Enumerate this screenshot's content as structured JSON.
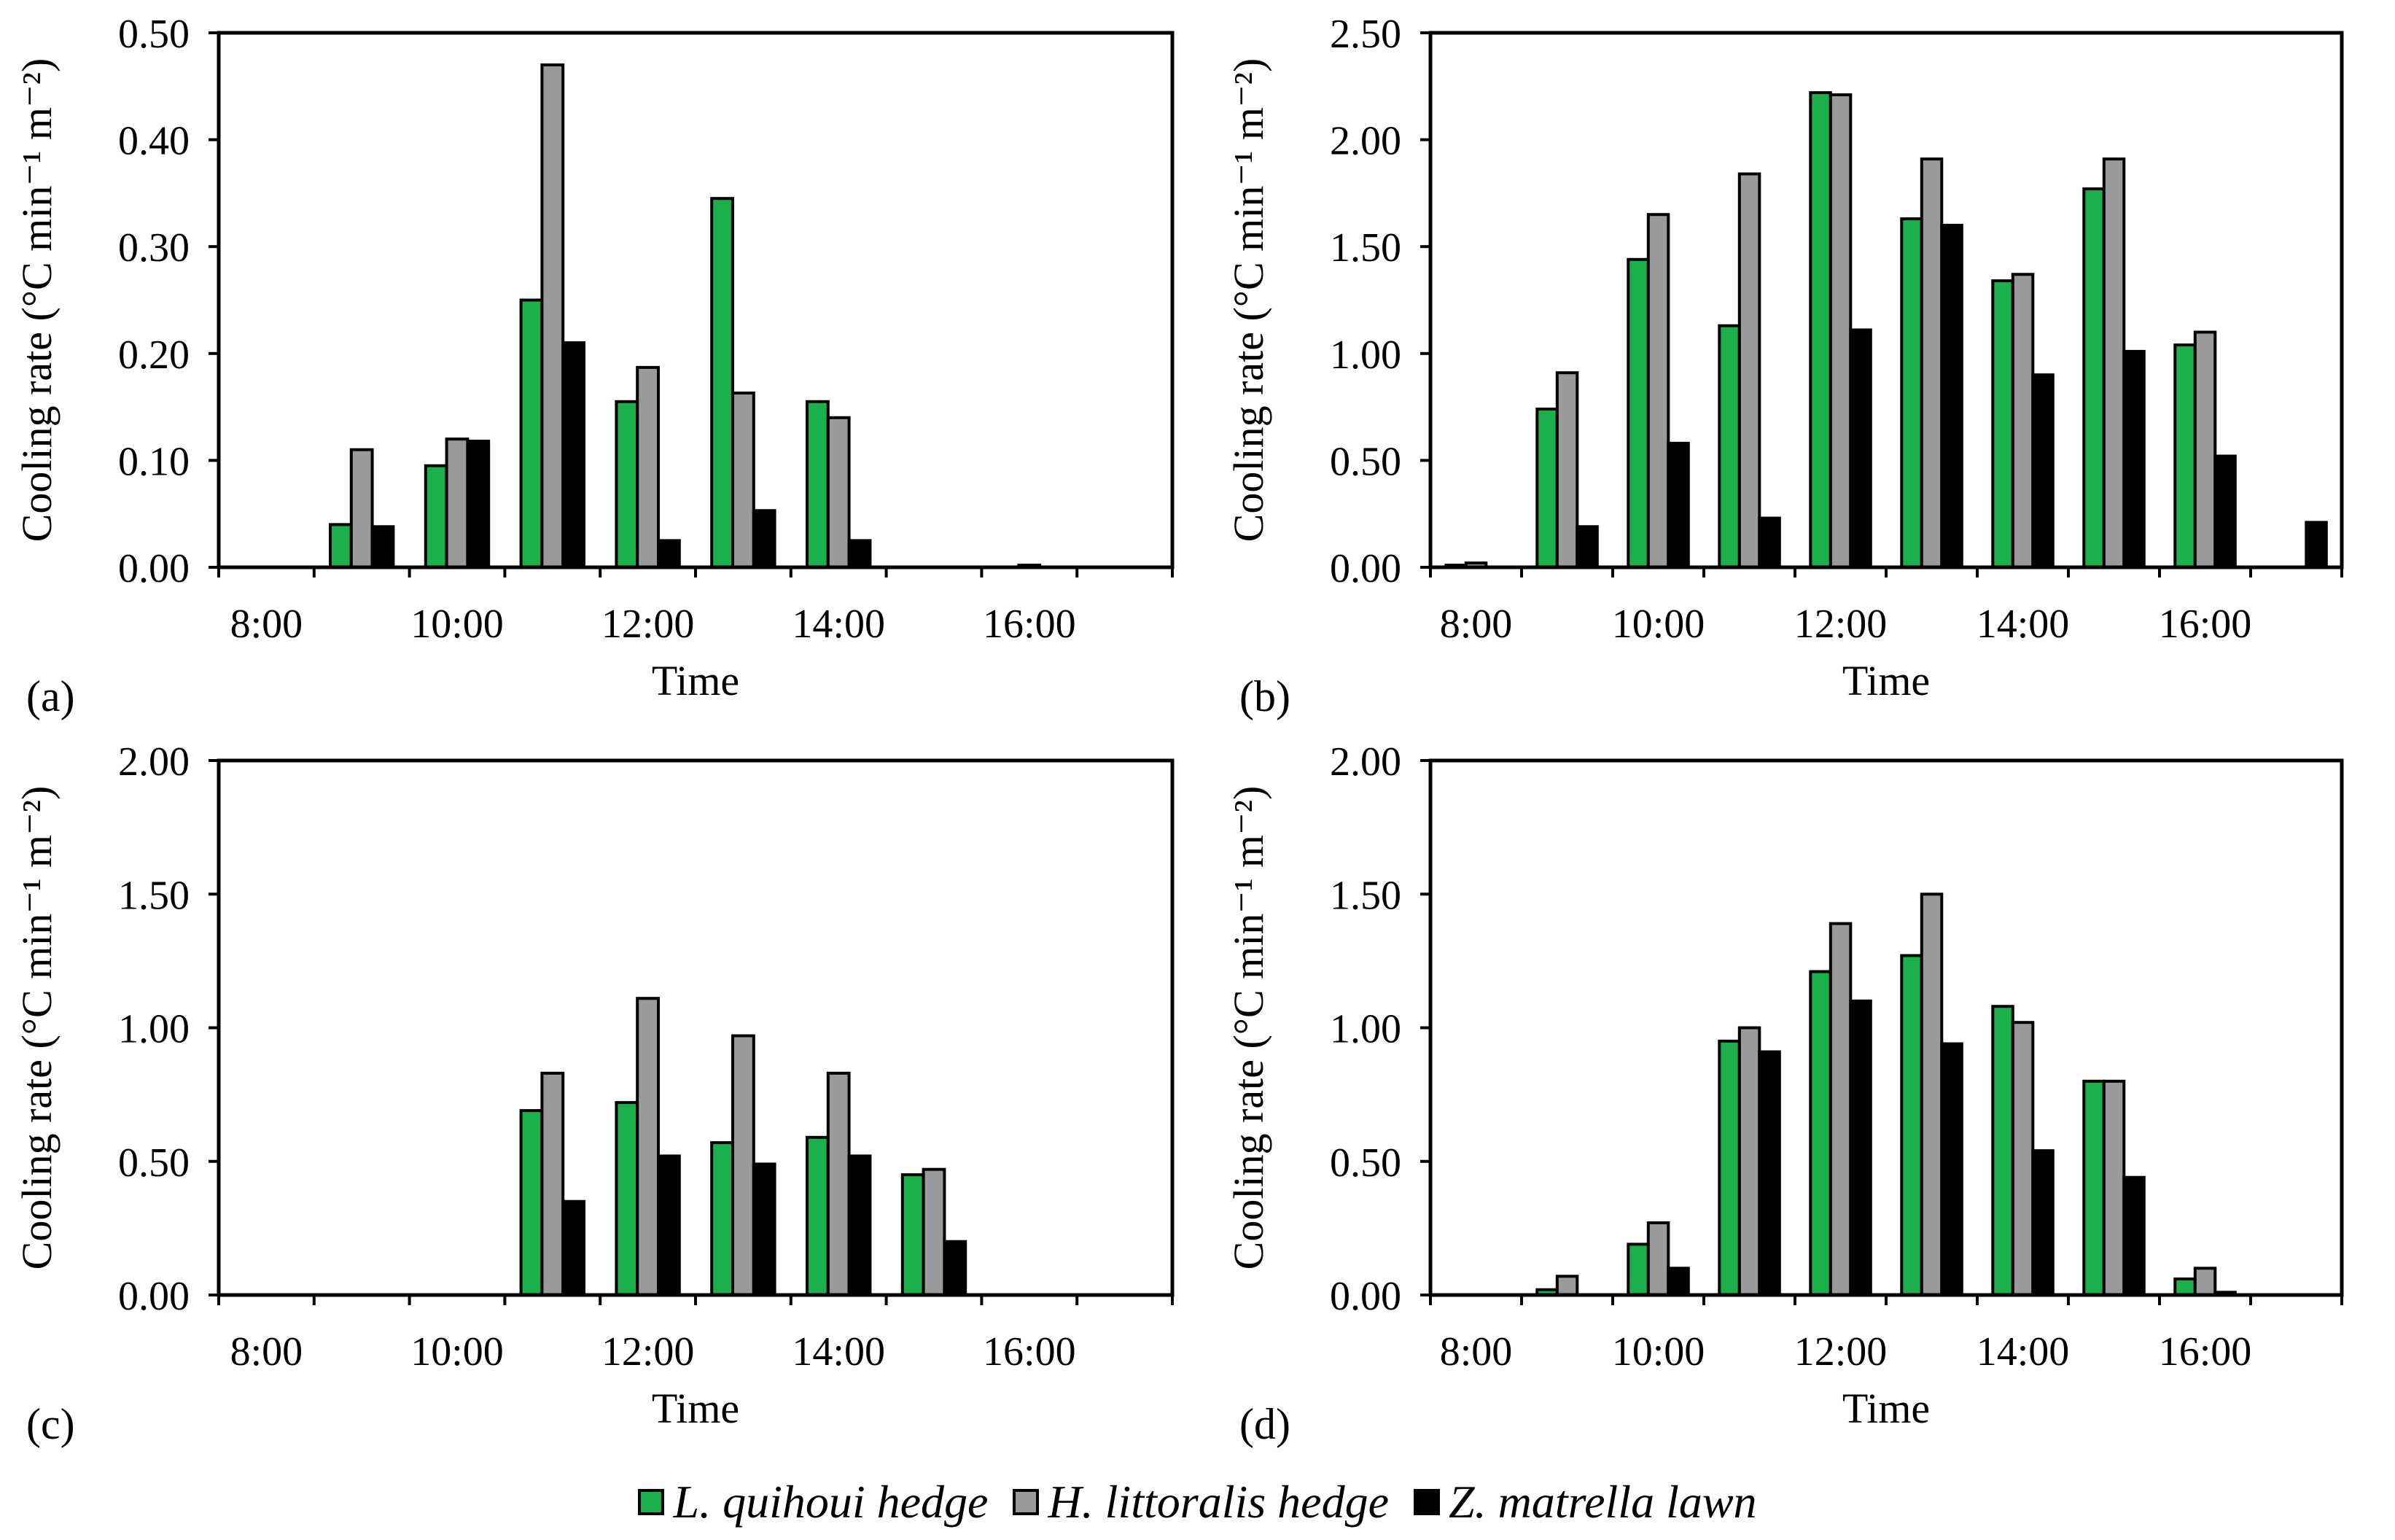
{
  "colors": {
    "green": "#1bb04c",
    "gray": "#9a9a9a",
    "black": "#000000"
  },
  "legend": {
    "items": [
      {
        "label": "L. quihoui hedge",
        "color": "#1bb04c"
      },
      {
        "label": "H. littoralis hedge",
        "color": "#9a9a9a"
      },
      {
        "label": "Z. matrella lawn",
        "color": "#000000"
      }
    ]
  },
  "chart_data": [
    {
      "type": "bar",
      "panel": "(a)",
      "xlabel": "Time",
      "ylabel": "Cooling rate (°C min⁻¹ m⁻²)",
      "ylim": [
        0,
        0.5
      ],
      "yticks": [
        "0.00",
        "0.10",
        "0.20",
        "0.30",
        "0.40",
        "0.50"
      ],
      "categories": [
        "8:00",
        "9:00",
        "10:00",
        "11:00",
        "12:00",
        "13:00",
        "14:00",
        "15:00",
        "16:00",
        "17:00"
      ],
      "xtick_labels": [
        "8:00",
        "10:00",
        "12:00",
        "14:00",
        "16:00"
      ],
      "series": [
        {
          "name": "L. quihoui hedge",
          "values": [
            0,
            0.04,
            0.095,
            0.25,
            0.155,
            0.345,
            0.155,
            0,
            0,
            0
          ]
        },
        {
          "name": "H. littoralis hedge",
          "values": [
            0,
            0.11,
            0.12,
            0.47,
            0.187,
            0.163,
            0.14,
            0,
            0.002,
            0
          ]
        },
        {
          "name": "Z. matrella lawn",
          "values": [
            0,
            0.038,
            0.118,
            0.21,
            0.025,
            0.053,
            0.025,
            0,
            0,
            0
          ]
        }
      ]
    },
    {
      "type": "bar",
      "panel": "(b)",
      "xlabel": "Time",
      "ylabel": "Cooling rate (°C min⁻¹ m⁻²)",
      "ylim": [
        0,
        2.5
      ],
      "yticks": [
        "0.00",
        "0.50",
        "1.00",
        "1.50",
        "2.00",
        "2.50"
      ],
      "categories": [
        "8:00",
        "9:00",
        "10:00",
        "11:00",
        "12:00",
        "13:00",
        "14:00",
        "15:00",
        "16:00",
        "17:00"
      ],
      "xtick_labels": [
        "8:00",
        "10:00",
        "12:00",
        "14:00",
        "16:00"
      ],
      "series": [
        {
          "name": "L. quihoui hedge",
          "values": [
            0.01,
            0.74,
            1.44,
            1.13,
            2.22,
            1.63,
            1.34,
            1.77,
            1.04,
            0
          ]
        },
        {
          "name": "H. littoralis hedge",
          "values": [
            0.02,
            0.91,
            1.65,
            1.84,
            2.21,
            1.91,
            1.37,
            1.91,
            1.1,
            0
          ]
        },
        {
          "name": "Z. matrella lawn",
          "values": [
            0,
            0.19,
            0.58,
            0.23,
            1.11,
            1.6,
            0.9,
            1.01,
            0.52,
            0.21
          ]
        }
      ]
    },
    {
      "type": "bar",
      "panel": "(c)",
      "xlabel": "Time",
      "ylabel": "Cooling rate (°C min⁻¹ m⁻²)",
      "ylim": [
        0,
        2.0
      ],
      "yticks": [
        "0.00",
        "0.50",
        "1.00",
        "1.50",
        "2.00"
      ],
      "categories": [
        "8:00",
        "9:00",
        "10:00",
        "11:00",
        "12:00",
        "13:00",
        "14:00",
        "15:00",
        "16:00",
        "17:00"
      ],
      "xtick_labels": [
        "8:00",
        "10:00",
        "12:00",
        "14:00",
        "16:00"
      ],
      "series": [
        {
          "name": "L. quihoui hedge",
          "values": [
            0,
            0,
            0,
            0.69,
            0.72,
            0.57,
            0.59,
            0.45,
            0,
            0
          ]
        },
        {
          "name": "H. littoralis hedge",
          "values": [
            0,
            0,
            0,
            0.83,
            1.11,
            0.97,
            0.83,
            0.47,
            0,
            0
          ]
        },
        {
          "name": "Z. matrella lawn",
          "values": [
            0,
            0,
            0,
            0.35,
            0.52,
            0.49,
            0.52,
            0.2,
            0,
            0
          ]
        }
      ]
    },
    {
      "type": "bar",
      "panel": "(d)",
      "xlabel": "Time",
      "ylabel": "Cooling rate (°C min⁻¹ m⁻²)",
      "ylim": [
        0,
        2.0
      ],
      "yticks": [
        "0.00",
        "0.50",
        "1.00",
        "1.50",
        "2.00"
      ],
      "categories": [
        "8:00",
        "9:00",
        "10:00",
        "11:00",
        "12:00",
        "13:00",
        "14:00",
        "15:00",
        "16:00",
        "17:00"
      ],
      "xtick_labels": [
        "8:00",
        "10:00",
        "12:00",
        "14:00",
        "16:00"
      ],
      "series": [
        {
          "name": "L. quihoui hedge",
          "values": [
            0,
            0.02,
            0.19,
            0.95,
            1.21,
            1.27,
            1.08,
            0.8,
            0.06,
            0
          ]
        },
        {
          "name": "H. littoralis hedge",
          "values": [
            0,
            0.07,
            0.27,
            1.0,
            1.39,
            1.5,
            1.02,
            0.8,
            0.1,
            0
          ]
        },
        {
          "name": "Z. matrella lawn",
          "values": [
            0,
            0,
            0.1,
            0.91,
            1.1,
            0.94,
            0.54,
            0.44,
            0.01,
            0
          ]
        }
      ]
    }
  ]
}
